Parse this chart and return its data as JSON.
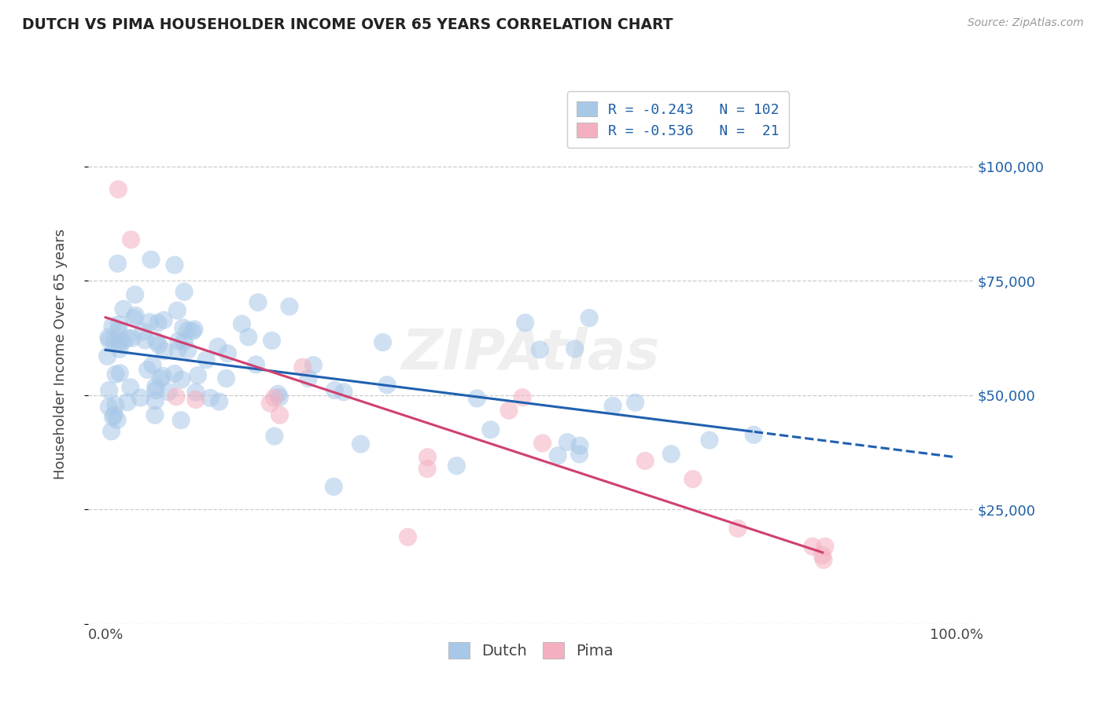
{
  "title": "DUTCH VS PIMA HOUSEHOLDER INCOME OVER 65 YEARS CORRELATION CHART",
  "source": "Source: ZipAtlas.com",
  "ylabel": "Householder Income Over 65 years",
  "dutch_R": -0.243,
  "dutch_N": 102,
  "pima_R": -0.536,
  "pima_N": 21,
  "dutch_color": "#A8C8E8",
  "pima_color": "#F4B0C0",
  "dutch_line_color": "#2060B0",
  "pima_line_color": "#D04070",
  "right_label_color": "#1F5FA6",
  "background_color": "#FFFFFF",
  "grid_color": "#CCCCCC",
  "title_color": "#222222",
  "source_color": "#999999",
  "ylim": [
    0,
    118000
  ],
  "xlim": [
    -2,
    102
  ],
  "scatter_size": 280,
  "scatter_alpha": 0.55
}
